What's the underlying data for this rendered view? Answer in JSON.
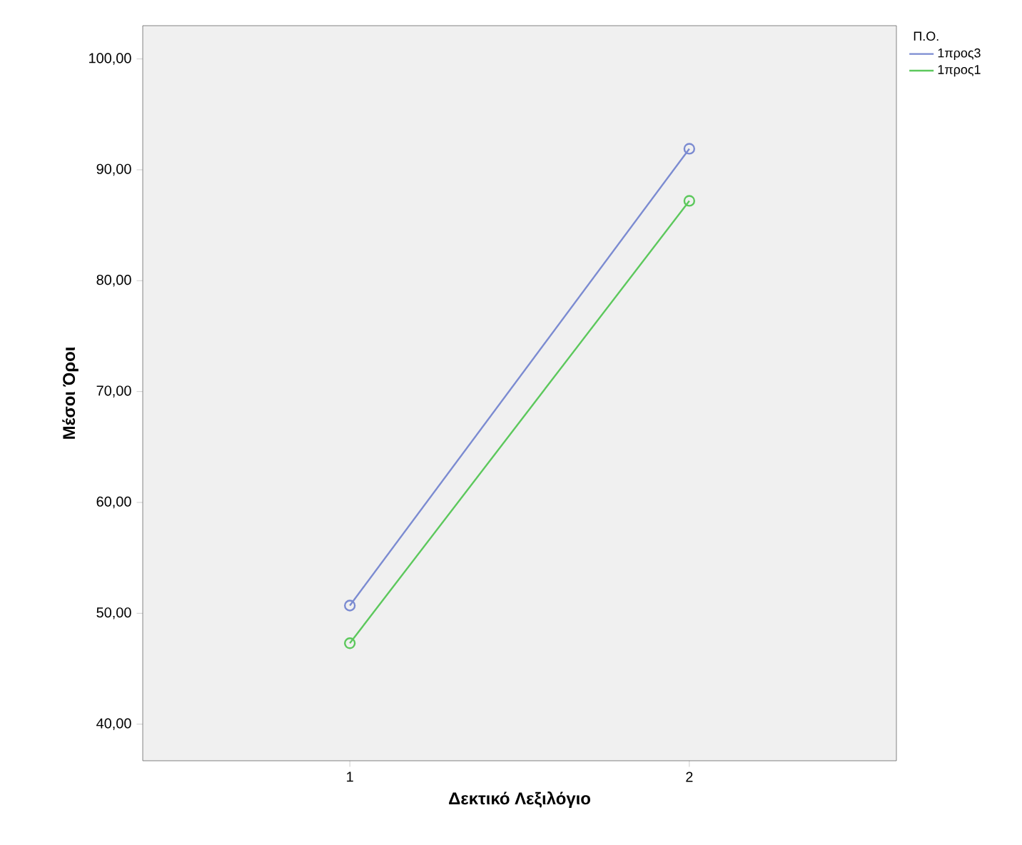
{
  "chart_data": {
    "type": "line",
    "xlabel": "Δεκτικό Λεξιλόγιο",
    "ylabel": "Μέσοι Όροι",
    "legend_title": "Π.Ο.",
    "categories": [
      "1",
      "2"
    ],
    "series": [
      {
        "name": "1προς3",
        "color": "#7b8bd1",
        "values": [
          50.7,
          91.9
        ]
      },
      {
        "name": "1προς1",
        "color": "#5cc85c",
        "values": [
          47.3,
          87.2
        ]
      }
    ],
    "ylim": [
      36.7,
      103
    ],
    "yticks": [
      {
        "value": 40,
        "label": "40,00"
      },
      {
        "value": 50,
        "label": "50,00"
      },
      {
        "value": 60,
        "label": "60,00"
      },
      {
        "value": 70,
        "label": "70,00"
      },
      {
        "value": 80,
        "label": "80,00"
      },
      {
        "value": 90,
        "label": "90,00"
      },
      {
        "value": 100,
        "label": "100,00"
      }
    ],
    "legend": "top right",
    "marker": "circle",
    "line_style": "solid",
    "grid": false
  }
}
